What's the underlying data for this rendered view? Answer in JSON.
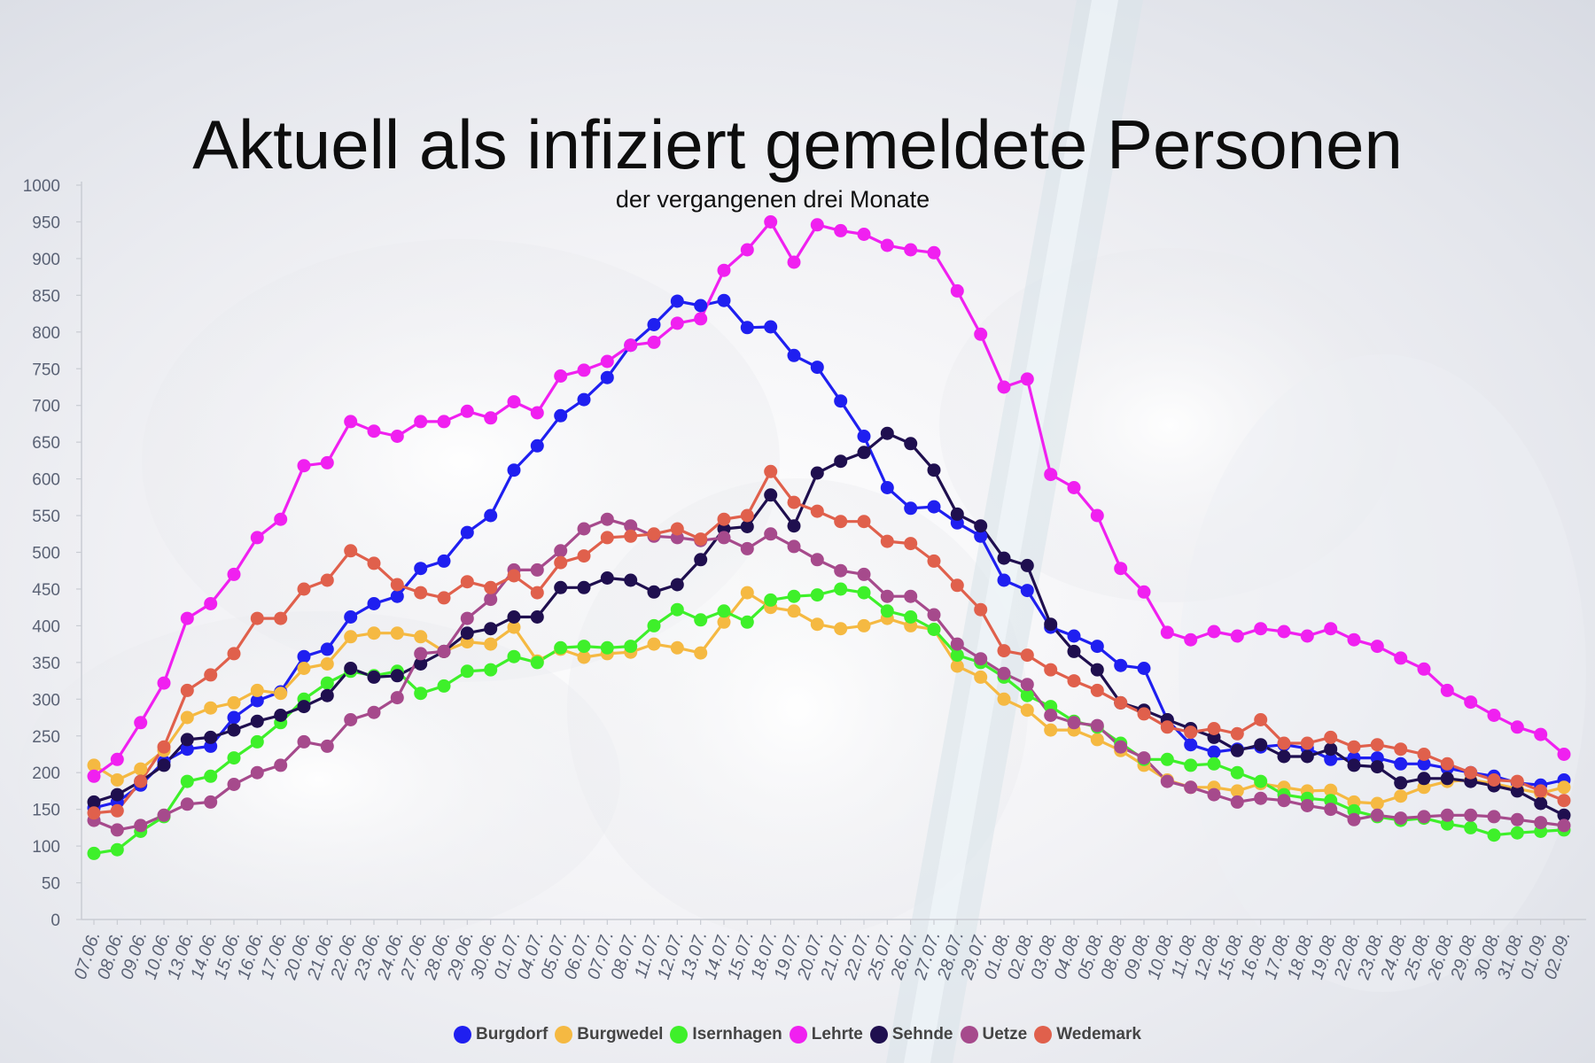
{
  "title": "Aktuell als infiziert gemeldete Personen",
  "subtitle": "der vergangenen drei Monate",
  "chart_data": {
    "type": "line",
    "title": "Aktuell als infiziert gemeldete Personen",
    "subtitle": "der vergangenen drei Monate",
    "xlabel": "",
    "ylabel": "",
    "ylim": [
      0,
      1000
    ],
    "yticks": [
      0,
      50,
      100,
      150,
      200,
      250,
      300,
      350,
      400,
      450,
      500,
      550,
      600,
      650,
      700,
      750,
      800,
      850,
      900,
      950,
      1000
    ],
    "grid": false,
    "legend_position": "bottom",
    "categories": [
      "07.06.",
      "08.06.",
      "09.06.",
      "10.06.",
      "13.06.",
      "14.06.",
      "15.06.",
      "16.06.",
      "17.06.",
      "20.06.",
      "21.06.",
      "22.06.",
      "23.06.",
      "24.06.",
      "27.06.",
      "28.06.",
      "29.06.",
      "30.06.",
      "01.07.",
      "04.07.",
      "05.07.",
      "06.07.",
      "07.07.",
      "08.07.",
      "11.07.",
      "12.07.",
      "13.07.",
      "14.07.",
      "15.07.",
      "18.07.",
      "19.07.",
      "20.07.",
      "21.07.",
      "22.07.",
      "25.07.",
      "26.07.",
      "27.07.",
      "28.07.",
      "29.07.",
      "01.08.",
      "02.08.",
      "03.08.",
      "04.08.",
      "05.08.",
      "08.08.",
      "09.08.",
      "10.08.",
      "11.08.",
      "12.08.",
      "15.08.",
      "16.08.",
      "17.08.",
      "18.08.",
      "19.08.",
      "22.08.",
      "23.08.",
      "24.08.",
      "25.08.",
      "26.08.",
      "29.08.",
      "30.08.",
      "31.08.",
      "01.09.",
      "02.09."
    ],
    "point_labels": [
      "07.06.",
      "08.06.",
      "09.06.",
      "10.06.",
      "13.06.",
      "14.06.",
      "15.06.",
      "16.06.",
      "17.06.",
      "20.06.",
      "21.06.",
      "22.06.",
      "23.06.",
      "24.06.",
      "27.06.",
      "28.06.",
      "29.06.",
      "30.06.",
      "01.07.",
      "04.07.",
      "05.07.",
      "06.07.",
      "07.07.",
      "08.07.",
      "11.07.",
      "12.07.",
      "13.07.",
      "14.07.",
      "15.07.",
      "18.07.",
      "19.07.",
      "20.07.",
      "21.07.",
      "22.07.",
      "25.07.",
      "26.07.",
      "27.07.",
      "28.07.",
      "29.07.",
      "01.08.",
      "02.08.",
      "03.08.",
      "04.08.",
      "05.08.",
      "08.08.",
      "09.08.",
      "10.08.",
      "11.08.",
      "12.08.",
      "15.08.",
      "16.08.",
      "17.08.",
      "18.08.",
      "19.08.",
      "22.08.",
      "23.08.",
      "24.08.",
      "25.08.",
      "26.08.",
      "29.08.",
      "30.08.",
      "31.08.",
      "01.09.",
      "02.09."
    ],
    "series": [
      {
        "name": "Burgdorf",
        "color": "#1f1ff0",
        "values": [
          152,
          160,
          183,
          215,
          232,
          236,
          275,
          298,
          310,
          358,
          368,
          412,
          430,
          440,
          478,
          488,
          527,
          550,
          612,
          645,
          686,
          708,
          738,
          782,
          810,
          842,
          836,
          843,
          806,
          807,
          768,
          752,
          706,
          658,
          588,
          560,
          562,
          540,
          522,
          462,
          448,
          398,
          386,
          372,
          346,
          342,
          272,
          238,
          228,
          232,
          235,
          238,
          233,
          218,
          220,
          220,
          212,
          212,
          206,
          200,
          195,
          186,
          183,
          190
        ]
      },
      {
        "name": "Burgwedel",
        "color": "#f5b942",
        "values": [
          210,
          190,
          205,
          230,
          275,
          288,
          295,
          312,
          308,
          342,
          348,
          385,
          390,
          390,
          385,
          365,
          378,
          375,
          398,
          352,
          368,
          357,
          362,
          364,
          375,
          370,
          363,
          405,
          445,
          425,
          420,
          402,
          396,
          400,
          410,
          400,
          395,
          345,
          330,
          300,
          285,
          258,
          258,
          245,
          230,
          210,
          190,
          180,
          180,
          175,
          185,
          180,
          175,
          176,
          160,
          158,
          168,
          180,
          188,
          190,
          185,
          178,
          172,
          180
        ]
      },
      {
        "name": "Isernhagen",
        "color": "#3ef02a",
        "values": [
          90,
          95,
          120,
          140,
          188,
          195,
          220,
          242,
          268,
          300,
          322,
          338,
          332,
          338,
          308,
          318,
          338,
          340,
          358,
          350,
          370,
          372,
          370,
          372,
          400,
          422,
          408,
          420,
          405,
          435,
          440,
          442,
          450,
          445,
          420,
          412,
          395,
          360,
          350,
          330,
          305,
          290,
          270,
          262,
          240,
          218,
          218,
          210,
          212,
          200,
          188,
          170,
          165,
          162,
          148,
          140,
          135,
          138,
          130,
          125,
          115,
          118,
          120,
          122
        ]
      },
      {
        "name": "Lehrte",
        "color": "#f020f0",
        "values": [
          195,
          218,
          268,
          322,
          410,
          430,
          470,
          520,
          545,
          618,
          622,
          678,
          665,
          658,
          678,
          678,
          692,
          683,
          705,
          690,
          740,
          748,
          760,
          782,
          786,
          812,
          818,
          884,
          912,
          950,
          895,
          946,
          938,
          933,
          918,
          912,
          908,
          856,
          797,
          725,
          736,
          606,
          588,
          550,
          478,
          446,
          391,
          381,
          392,
          386,
          396,
          392,
          386,
          396,
          381,
          372,
          356,
          341,
          312,
          296,
          278,
          262,
          252,
          225
        ]
      },
      {
        "name": "Sehnde",
        "color": "#1f0f4f",
        "values": [
          160,
          170,
          188,
          210,
          245,
          248,
          258,
          270,
          278,
          290,
          305,
          342,
          330,
          332,
          348,
          365,
          390,
          396,
          412,
          412,
          452,
          452,
          465,
          462,
          446,
          456,
          490,
          532,
          535,
          578,
          536,
          608,
          624,
          636,
          662,
          648,
          612,
          552,
          536,
          492,
          482,
          402,
          365,
          340,
          295,
          285,
          272,
          260,
          248,
          230,
          238,
          222,
          222,
          232,
          210,
          208,
          186,
          192,
          192,
          188,
          182,
          175,
          158,
          142
        ]
      },
      {
        "name": "Uetze",
        "color": "#a64a8c",
        "values": [
          135,
          122,
          128,
          142,
          157,
          160,
          184,
          200,
          210,
          242,
          236,
          272,
          282,
          302,
          362,
          365,
          410,
          436,
          476,
          476,
          502,
          532,
          545,
          536,
          522,
          520,
          516,
          520,
          505,
          525,
          508,
          490,
          475,
          470,
          440,
          440,
          415,
          375,
          355,
          335,
          320,
          278,
          268,
          264,
          235,
          220,
          188,
          180,
          170,
          160,
          165,
          162,
          155,
          150,
          136,
          142,
          138,
          140,
          142,
          142,
          140,
          136,
          132,
          128
        ]
      },
      {
        "name": "Wedemark",
        "color": "#e0604c",
        "values": [
          145,
          148,
          188,
          235,
          312,
          333,
          362,
          410,
          410,
          450,
          462,
          502,
          485,
          456,
          445,
          438,
          460,
          452,
          468,
          445,
          486,
          495,
          520,
          522,
          525,
          532,
          518,
          545,
          550,
          610,
          568,
          556,
          542,
          542,
          515,
          512,
          488,
          455,
          422,
          366,
          360,
          340,
          325,
          312,
          295,
          280,
          262,
          255,
          260,
          253,
          272,
          240,
          240,
          248,
          235,
          238,
          232,
          225,
          212,
          200,
          190,
          188,
          175,
          162
        ]
      }
    ]
  }
}
